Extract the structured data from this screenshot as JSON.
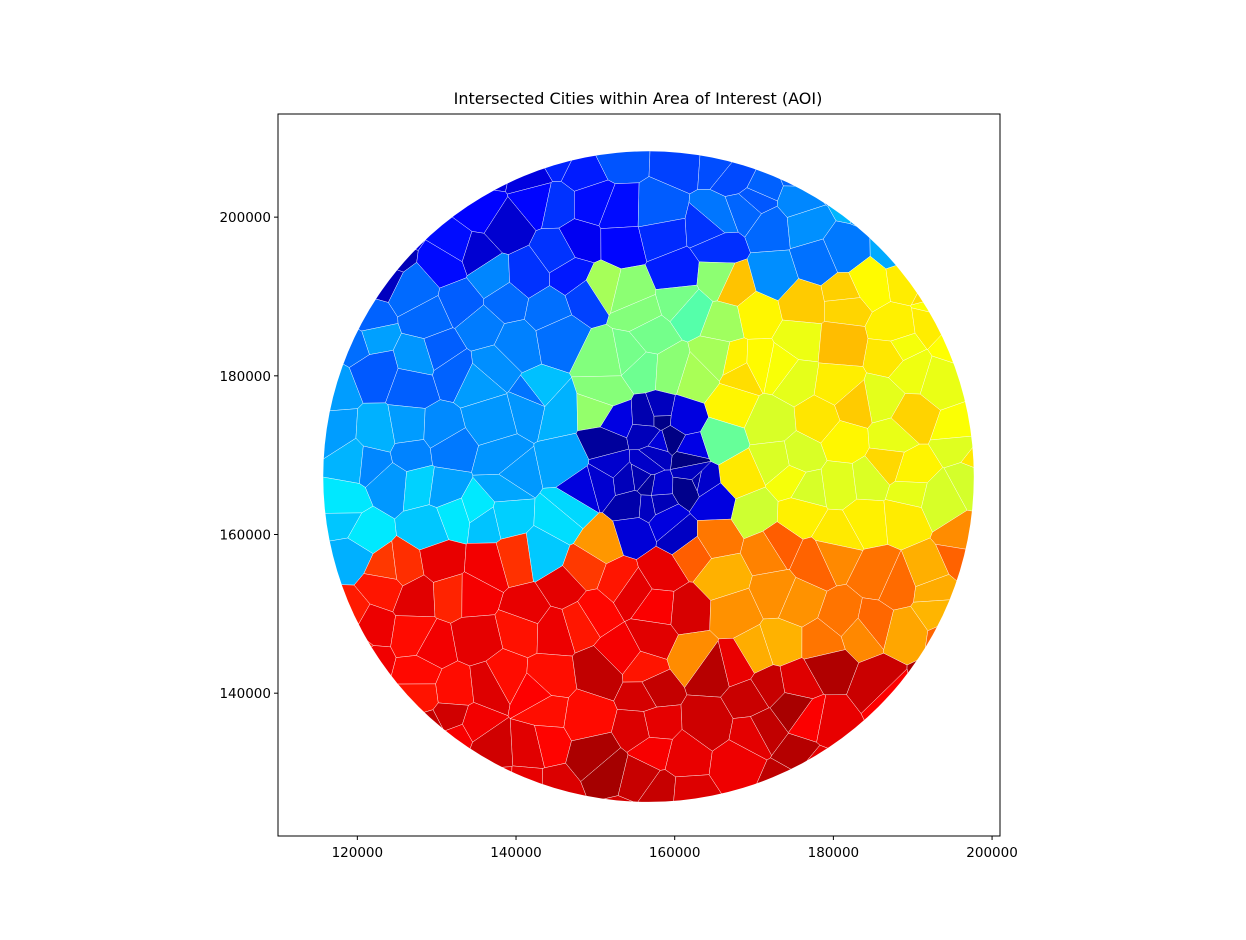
{
  "title": "Intersected Cities within Area of Interest (AOI)",
  "map": {
    "type": "choropleth",
    "colormap": "jet",
    "xlim": [
      110000,
      201000
    ],
    "ylim": [
      122000,
      213000
    ],
    "aoi_center": [
      156700,
      167300
    ],
    "aoi_radius": 41000,
    "x_ticks": [
      120000,
      140000,
      160000,
      180000,
      200000
    ],
    "y_ticks": [
      140000,
      160000,
      180000,
      200000
    ],
    "x_tick_labels": [
      "120000",
      "140000",
      "160000",
      "180000",
      "200000"
    ],
    "y_tick_labels": [
      "140000",
      "160000",
      "180000",
      "200000"
    ]
  },
  "colors": {
    "frame": "#000000",
    "border": "#ffffff",
    "background": "#ffffff"
  }
}
